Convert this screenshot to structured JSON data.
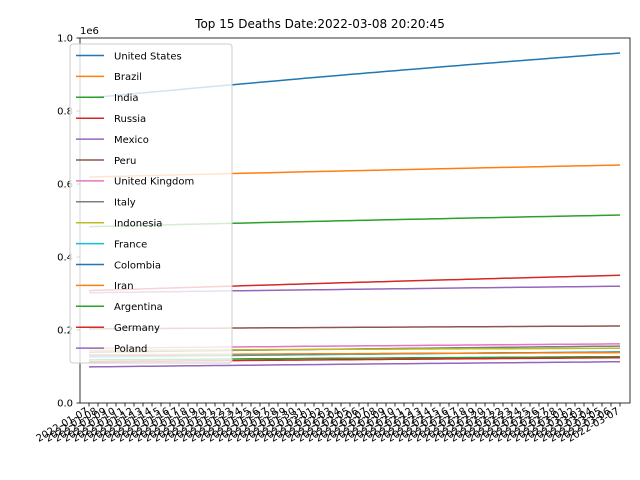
{
  "chart_data": {
    "type": "line",
    "title": "Top 15 Deaths Date:2022-03-08 20:20:45",
    "xlabel": "",
    "ylabel": "",
    "y_multiplier_label": "1e6",
    "ylim": [
      0,
      1.0
    ],
    "y_ticks": [
      0.0,
      0.2,
      0.4,
      0.6,
      0.8,
      1.0
    ],
    "y_tick_labels": [
      "0.0",
      "0.2",
      "0.4",
      "0.6",
      "0.8",
      "1.0"
    ],
    "grid": false,
    "legend_position": "upper-left",
    "x_start_date": "2022-01-07",
    "x_end_date": "2022-03-07",
    "series": [
      {
        "name": "United States",
        "color": "#1f77b4",
        "start": 0.836,
        "end": 0.959
      },
      {
        "name": "Brazil",
        "color": "#ff7f0e",
        "start": 0.619,
        "end": 0.652
      },
      {
        "name": "India",
        "color": "#2ca02c",
        "start": 0.483,
        "end": 0.515
      },
      {
        "name": "Russia",
        "color": "#d62728",
        "start": 0.308,
        "end": 0.35
      },
      {
        "name": "Mexico",
        "color": "#9467bd",
        "start": 0.302,
        "end": 0.32
      },
      {
        "name": "Peru",
        "color": "#8c564b",
        "start": 0.203,
        "end": 0.211
      },
      {
        "name": "United Kingdom",
        "color": "#e377c2",
        "start": 0.15,
        "end": 0.162
      },
      {
        "name": "Italy",
        "color": "#7f7f7f",
        "start": 0.139,
        "end": 0.156
      },
      {
        "name": "Indonesia",
        "color": "#bcbd22",
        "start": 0.144,
        "end": 0.15
      },
      {
        "name": "France",
        "color": "#17becf",
        "start": 0.126,
        "end": 0.14
      },
      {
        "name": "Colombia",
        "color": "#1f77b4",
        "start": 0.13,
        "end": 0.139
      },
      {
        "name": "Iran",
        "color": "#ff7f0e",
        "start": 0.132,
        "end": 0.138
      },
      {
        "name": "Argentina",
        "color": "#2ca02c",
        "start": 0.118,
        "end": 0.127
      },
      {
        "name": "Germany",
        "color": "#d62728",
        "start": 0.113,
        "end": 0.124
      },
      {
        "name": "Poland",
        "color": "#9467bd",
        "start": 0.099,
        "end": 0.113
      }
    ]
  }
}
